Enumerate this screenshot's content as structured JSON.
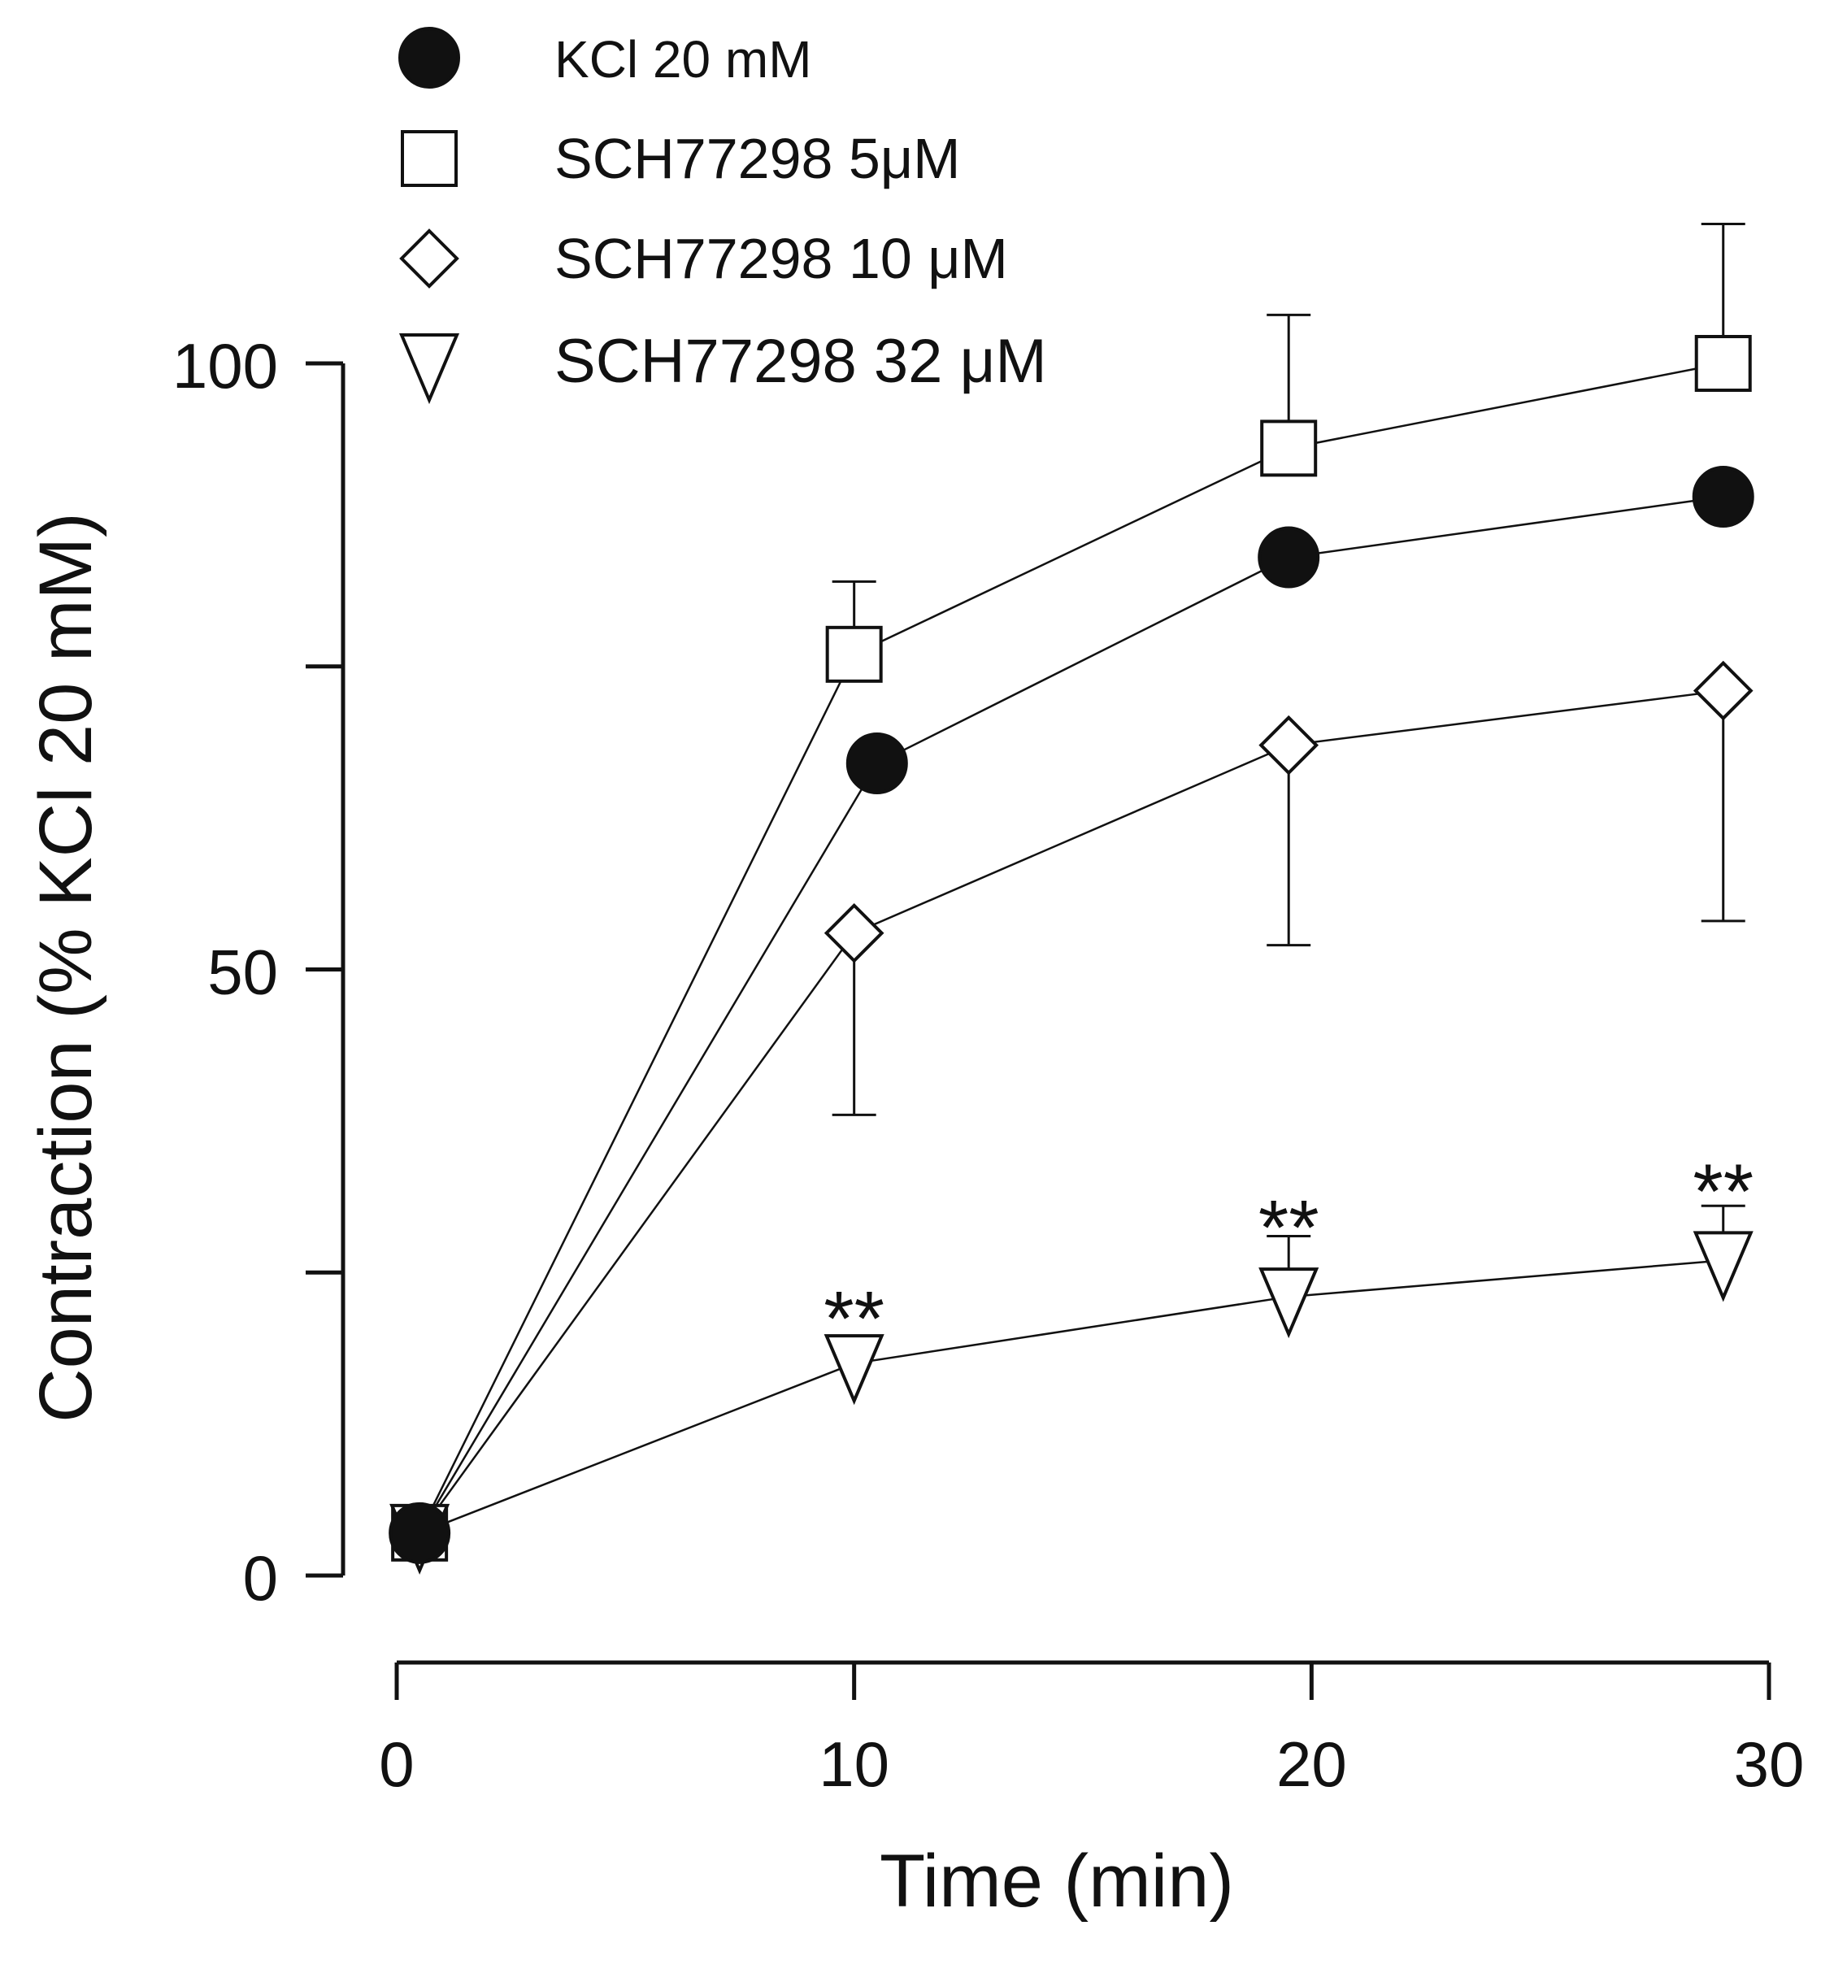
{
  "chart_data": {
    "type": "line",
    "title": "",
    "xlabel": "Time (min)",
    "ylabel": "Contraction (% KCl 20 mM)",
    "xlim": [
      0,
      30
    ],
    "ylim": [
      0,
      100
    ],
    "x_ticks": [
      0,
      10,
      20,
      30
    ],
    "x_tick_labels": [
      "0",
      "10",
      "20",
      "30"
    ],
    "y_ticks": [
      0,
      25,
      50,
      75,
      100
    ],
    "y_tick_labels": [
      "0",
      "",
      "50",
      "",
      "100"
    ],
    "grid": false,
    "legend_position": "top-left",
    "series": [
      {
        "name": "KCl 20 mM",
        "marker": "filled-circle",
        "x": [
          0.5,
          10.5,
          19.5,
          29
        ],
        "y": [
          3.5,
          67,
          84,
          89
        ],
        "error_up": [
          null,
          null,
          null,
          null
        ],
        "error_down": [
          null,
          null,
          null,
          null
        ]
      },
      {
        "name": "SCH77298  5μM",
        "marker": "open-square",
        "x": [
          0.5,
          10,
          19.5,
          29
        ],
        "y": [
          3.5,
          76,
          93,
          100
        ],
        "error_up": [
          null,
          82,
          104,
          111.5
        ],
        "error_down": [
          null,
          null,
          null,
          null
        ]
      },
      {
        "name": "SCH77298 10 μM",
        "marker": "open-diamond",
        "x": [
          0.5,
          10,
          19.5,
          29
        ],
        "y": [
          3.5,
          53,
          68.5,
          73
        ],
        "error_up": [
          null,
          null,
          null,
          null
        ],
        "error_down": [
          null,
          38,
          52,
          54
        ]
      },
      {
        "name": "SCH77298 32 μM",
        "marker": "open-triangle-down",
        "x": [
          0.5,
          10,
          19.5,
          29
        ],
        "y": [
          3.5,
          17.5,
          23,
          26
        ],
        "error_up": [
          null,
          null,
          28,
          30.5
        ],
        "error_down": [
          null,
          null,
          null,
          null
        ]
      }
    ],
    "annotations": [
      {
        "text": "**",
        "x": 10,
        "y": 22
      },
      {
        "text": "**",
        "x": 19.5,
        "y": 29.5
      },
      {
        "text": "**",
        "x": 29,
        "y": 32.5
      }
    ]
  },
  "colors": {
    "ink": "#111111",
    "marker_fill": "#ffffff"
  }
}
